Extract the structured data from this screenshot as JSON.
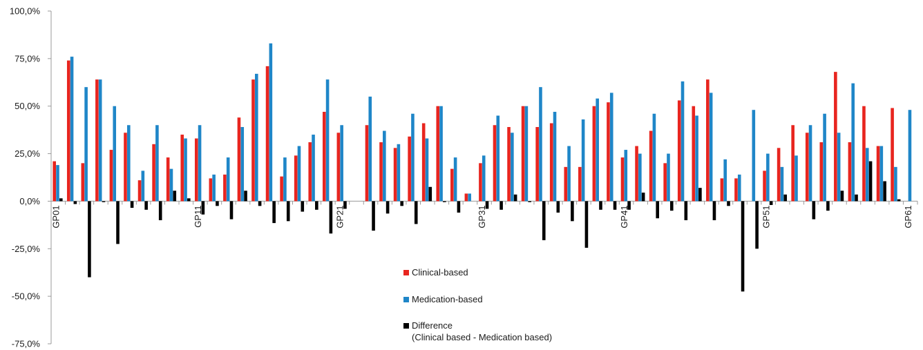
{
  "chart_data": {
    "type": "bar",
    "title": "",
    "xlabel": "",
    "ylabel": "",
    "ylim": [
      -75,
      100
    ],
    "yticks": [
      -75,
      -50,
      -25,
      0,
      25,
      50,
      75,
      100
    ],
    "ytick_labels": [
      "-75,0%",
      "-50,0%",
      "-25,0%",
      "0,0%",
      "25,0%",
      "50,0%",
      "75,0%",
      "100,0%"
    ],
    "grid": false,
    "legend_position": "bottom-center",
    "categories": [
      "GP01",
      "GP02",
      "GP03",
      "GP04",
      "GP05",
      "GP06",
      "GP07",
      "GP08",
      "GP09",
      "GP10",
      "GP11",
      "GP12",
      "GP13",
      "GP14",
      "GP15",
      "GP16",
      "GP17",
      "GP18",
      "GP19",
      "GP20",
      "GP21",
      "GP22",
      "GP23",
      "GP24",
      "GP25",
      "GP26",
      "GP27",
      "GP28",
      "GP29",
      "GP30",
      "GP31",
      "GP32",
      "GP33",
      "GP34",
      "GP35",
      "GP36",
      "GP37",
      "GP38",
      "GP39",
      "GP40",
      "GP41",
      "GP42",
      "GP43",
      "GP44",
      "GP45",
      "GP46",
      "GP47",
      "GP48",
      "GP49",
      "GP50",
      "GP51",
      "GP52",
      "GP53",
      "GP54",
      "GP55",
      "GP56",
      "GP57",
      "GP58",
      "GP59",
      "GP60",
      "GP61"
    ],
    "shown_category_labels": [
      "GP01",
      "GP11",
      "GP21",
      "GP31",
      "GP41",
      "GP51",
      "GP61"
    ],
    "series": [
      {
        "name": "Clinical-based",
        "color": "#e8251f",
        "values": [
          21,
          74,
          20,
          64,
          27,
          36,
          11,
          30,
          23,
          35,
          33,
          12,
          14,
          44,
          64,
          71,
          13,
          24,
          31,
          47,
          36,
          0,
          40,
          31,
          28,
          34,
          41,
          50,
          17,
          4,
          20,
          40,
          39,
          50,
          39,
          41,
          18,
          18,
          50,
          52,
          23,
          29,
          37,
          20,
          53,
          50,
          64,
          12,
          12,
          0,
          16,
          28,
          40,
          36,
          31,
          68,
          31,
          50,
          29,
          49,
          0
        ]
      },
      {
        "name": "Medication-based",
        "color": "#1f86c8",
        "values": [
          19,
          76,
          60,
          64,
          50,
          40,
          16,
          40,
          17,
          33,
          40,
          14,
          23,
          39,
          67,
          83,
          23,
          29,
          35,
          64,
          40,
          0,
          55,
          37,
          30,
          46,
          33,
          50,
          23,
          4,
          24,
          45,
          36,
          50,
          60,
          47,
          29,
          43,
          54,
          57,
          27,
          25,
          46,
          25,
          63,
          45,
          57,
          22,
          14,
          48,
          25,
          18,
          24,
          40,
          46,
          36,
          62,
          28,
          29,
          18,
          48
        ]
      },
      {
        "name": "Difference\n(Clinical based  - Medication based)",
        "color": "#000000",
        "values": [
          1.5,
          -1.5,
          -40,
          -0.5,
          -22.5,
          -3.5,
          -4.5,
          -10,
          5.5,
          1.5,
          -7,
          -2.5,
          -9.5,
          5.5,
          -2.5,
          -11.5,
          -10.5,
          -5.5,
          -4.5,
          -17,
          -4,
          0,
          -15.5,
          -6.5,
          -2.5,
          -12,
          7.5,
          -0.5,
          -6,
          0,
          -4,
          -4.5,
          3.5,
          -0.5,
          -20.5,
          -6,
          -10.5,
          -24.5,
          -4.5,
          -4.5,
          -4.5,
          4.5,
          -9,
          -5,
          -10,
          7,
          -10,
          -2.5,
          -47.5,
          -25,
          -2,
          3.5,
          0,
          -9.5,
          -5,
          5.5,
          3.5,
          21,
          10.5,
          1,
          0
        ]
      }
    ],
    "legend": [
      {
        "label": "Clinical-based",
        "color": "#e8251f"
      },
      {
        "label": "Medication-based",
        "color": "#1f86c8"
      },
      {
        "label": "Difference",
        "label2": "(Clinical based  - Medication based)",
        "color": "#000000"
      }
    ]
  }
}
